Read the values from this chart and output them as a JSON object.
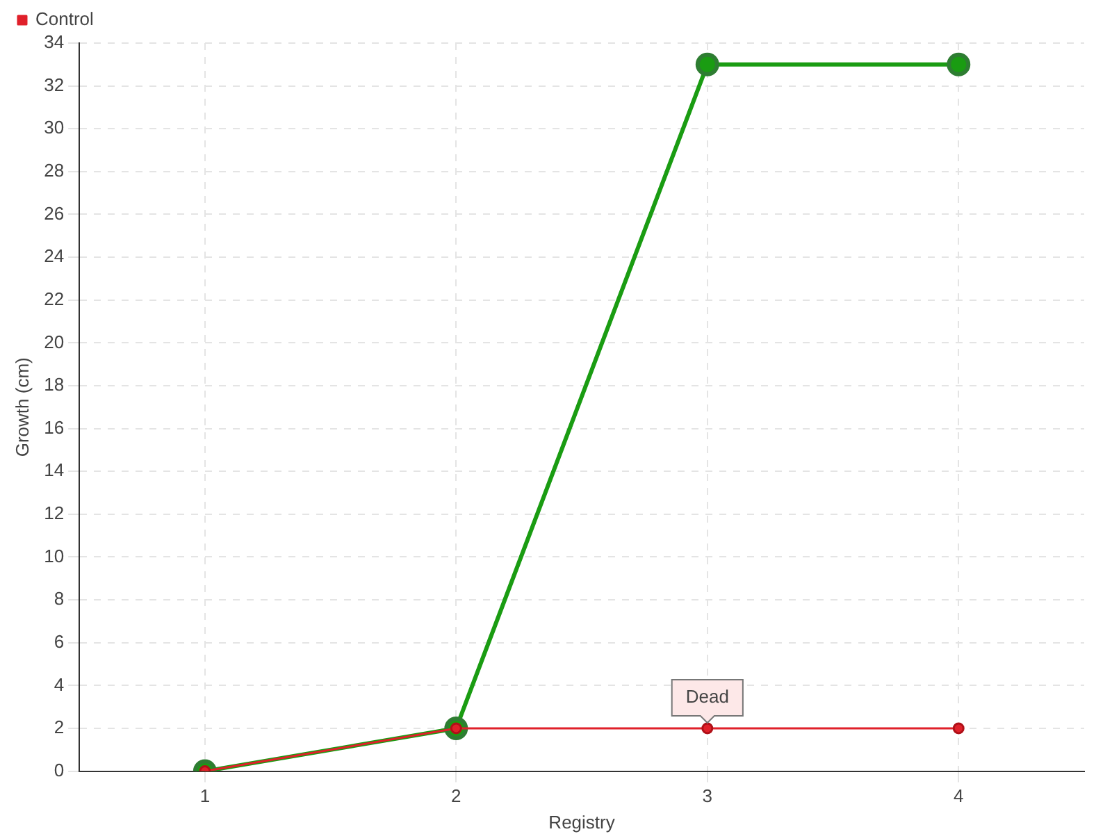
{
  "chart_data": {
    "type": "line",
    "xlabel": "Registry",
    "ylabel": "Growth (cm)",
    "categories": [
      "1",
      "2",
      "3",
      "4"
    ],
    "series": [
      {
        "color": "#1a9c12",
        "values": [
          0,
          2,
          33,
          33
        ]
      },
      {
        "name": "Control",
        "color": "#e0202a",
        "values": [
          0,
          2,
          2,
          2
        ]
      }
    ],
    "ylim": [
      0,
      34
    ],
    "yticks": [
      0,
      2,
      4,
      6,
      8,
      10,
      12,
      14,
      16,
      18,
      20,
      22,
      24,
      26,
      28,
      30,
      32,
      34
    ],
    "grid": true,
    "legend": "top left",
    "marker": "circle",
    "line_style": "solid",
    "annotations": [
      {
        "text": "Dead",
        "x": "3",
        "y": 2
      }
    ]
  }
}
